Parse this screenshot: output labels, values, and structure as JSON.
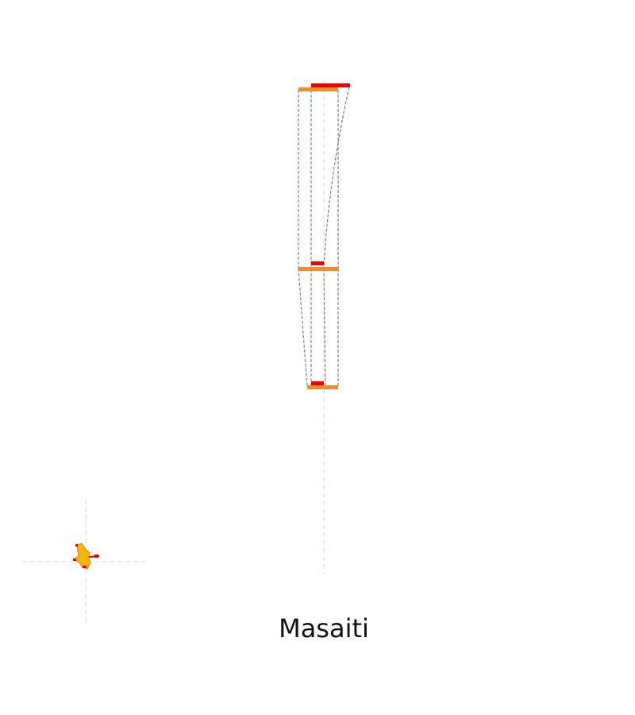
{
  "caption": "Masaiti",
  "colors": {
    "orange": "#f28c28",
    "red": "#ee0000",
    "connector": "#808080",
    "guide": "#d8d8d8",
    "marker_yellow": "#f5b800"
  },
  "icons": {
    "locator": "map-locator-icon"
  }
}
